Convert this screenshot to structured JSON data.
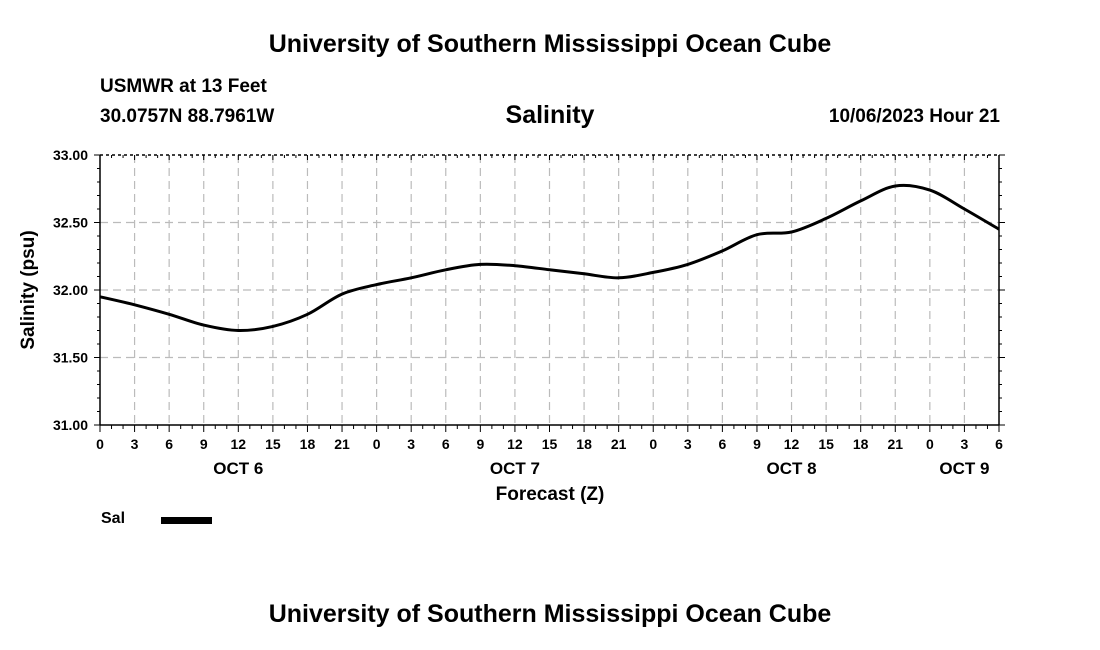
{
  "header": {
    "title": "University of Southern Mississippi Ocean Cube",
    "station": "USMWR at 13 Feet",
    "coordinates": "30.0757N  88.7961W",
    "datetime": "10/06/2023 Hour 21"
  },
  "footer": {
    "title": "University of Southern Mississippi Ocean Cube"
  },
  "chart_data": {
    "type": "line",
    "title": "Salinity",
    "xlabel": "Forecast (Z)",
    "ylabel": "Salinity (psu)",
    "xlim": [
      0,
      78
    ],
    "ylim": [
      31.0,
      33.0
    ],
    "yticks": [
      "31.00",
      "31.50",
      "32.00",
      "32.50",
      "33.00"
    ],
    "x_tick_labels": [
      "0",
      "3",
      "6",
      "9",
      "12",
      "15",
      "18",
      "21",
      "0",
      "3",
      "6",
      "9",
      "12",
      "15",
      "18",
      "21",
      "0",
      "3",
      "6",
      "9",
      "12",
      "15",
      "18",
      "21",
      "0",
      "3",
      "6"
    ],
    "day_labels": [
      {
        "label": "OCT 6",
        "x": 12
      },
      {
        "label": "OCT 7",
        "x": 36
      },
      {
        "label": "OCT 8",
        "x": 60
      },
      {
        "label": "OCT 9",
        "x": 75
      }
    ],
    "grid": true,
    "series": [
      {
        "name": "Sal",
        "color": "#000000",
        "x": [
          0,
          3,
          6,
          9,
          12,
          15,
          18,
          21,
          24,
          27,
          30,
          33,
          36,
          39,
          42,
          45,
          48,
          51,
          54,
          57,
          60,
          63,
          66,
          69,
          72,
          75,
          78
        ],
        "values": [
          31.95,
          31.89,
          31.82,
          31.74,
          31.7,
          31.73,
          31.82,
          31.97,
          32.04,
          32.09,
          32.15,
          32.19,
          32.18,
          32.15,
          32.12,
          32.09,
          32.13,
          32.19,
          32.29,
          32.41,
          32.43,
          32.53,
          32.66,
          32.77,
          32.74,
          32.6,
          32.45
        ]
      }
    ]
  }
}
